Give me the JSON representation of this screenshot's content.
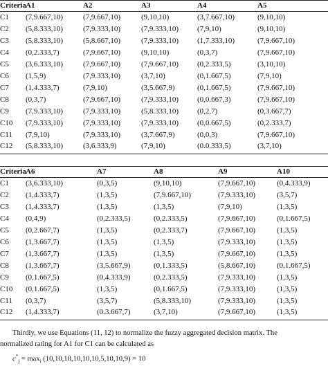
{
  "tables": [
    {
      "header": [
        "Criteria",
        "A1",
        "A2",
        "A3",
        "A4",
        "A5"
      ],
      "rows": [
        [
          "C1",
          "(7,9.667,10)",
          "(7,9.667,10)",
          "(9,10,10)",
          "(3,7.667,10)",
          "(9,10,10)"
        ],
        [
          "C2",
          "(5,8.333,10)",
          "(7,9.333,10)",
          "(7,9.333,10)",
          "(7,9,10)",
          "(9,10,10)"
        ],
        [
          "C3",
          "(5,8.333,10)",
          "(5,8.667,10)",
          "(7,9.333,10)",
          "(1,7.333,10)",
          "(7,9.667,10)"
        ],
        [
          "C4",
          "(0,2.333,7)",
          "(7,9.667,10)",
          "(9,10,10)",
          "(0,3,7)",
          "(7,9.667,10)"
        ],
        [
          "C5",
          "(3,6.333,10)",
          "(7,9.667,10)",
          "(7,9.667,10)",
          "(0,2.333,5)",
          "(3,10,10)"
        ],
        [
          "C6",
          "(1,5,9)",
          "(7,9.333,10)",
          "(3,7,10)",
          "(0,1.667,5)",
          "(7,9,10)"
        ],
        [
          "C7",
          "(1,4.333,7)",
          "(7,9,10)",
          "(3,5.667,9)",
          "(0,1.667,5)",
          "(7,9.667,10)"
        ],
        [
          "C8",
          "(0,3,7)",
          "(7,9.667,10)",
          "(7,9.333,10)",
          "(0,0.667,3)",
          "(7,9.667,10)"
        ],
        [
          "C9",
          "(7,9.333,10)",
          "(7,9.333,10)",
          "(5,8.333,10)",
          "(0,2,7)",
          "(0,3.667,7)"
        ],
        [
          "C10",
          "(7,9.333,10)",
          "(7,9.333,10)",
          "(7,9.333,10)",
          "(0,0.667,5)",
          "(0,2.333,7)"
        ],
        [
          "C11",
          "(7,9,10)",
          "(7,9.333,10)",
          "(3,7.667,9)",
          "(0,0,3)",
          "(7,9.667,10)"
        ],
        [
          "C12",
          "(5,8.333,10)",
          "(3,6.333,9)",
          "(7,9,10)",
          "(0.0.333,5)",
          "(3,7,10)"
        ]
      ]
    },
    {
      "header": [
        "Criteria",
        "A6",
        "A7",
        "A8",
        "A9",
        "A10"
      ],
      "rows": [
        [
          "C1",
          "(3,6.333,10)",
          "(0,3,5)",
          "(9,10,10)",
          "(7,9.667,10)",
          "(0,4.333,9)"
        ],
        [
          "C2",
          "(1,4.333,7)",
          "(1,3,5)",
          "(7,9.667,10)",
          "(7,9.333,10)",
          "(3,5,7)"
        ],
        [
          "C3",
          "(1,4.333,7)",
          "(1,3,5)",
          "(1,3,5)",
          "(7,9,10)",
          "(1,3,5)"
        ],
        [
          "C4",
          "(0,4,9)",
          "(0,2.333,5)",
          "(0,2.333,5)",
          "(7,9.667,10)",
          "(0,1.667,5)"
        ],
        [
          "C5",
          "(0,2.667,7)",
          "(1,3,5)",
          "(0,2.333,7)",
          "(7,9.667,10)",
          "(1,3,5)"
        ],
        [
          "C6",
          "(1,3.667,7)",
          "(1,3,5)",
          "(1,3,5)",
          "(7,9.333,10)",
          "(1,3,5)"
        ],
        [
          "C7",
          "(1,3.667,7)",
          "(1,3,5)",
          "(1,3,5)",
          "(7,9.667,10)",
          "(1,3,5)"
        ],
        [
          "C8",
          "(1,3.667,7)",
          "(3,5.667,9)",
          "(0,1.333,5)",
          "(5,8.667,10)",
          "(0,1.667,5)"
        ],
        [
          "C9",
          "(0,1.667,5)",
          "(0,4.333,9)",
          "(0,2.333,5)",
          "(7,9.333,10)",
          "(1,3,5)"
        ],
        [
          "C10",
          "(0,1.667,5)",
          "(1,3,5)",
          "(0,1.667,5)",
          "(7,9.333,10)",
          "(1,3,5)"
        ],
        [
          "C11",
          "(0,3,7)",
          "(3,5,7)",
          "(5,8.333,10)",
          "(7,9.333,10)",
          "(1,3,5)"
        ],
        [
          "C12",
          "(1,4.333,7)",
          "(0.3.667,7)",
          "(3,7,10)",
          "(7,9.667,10)",
          "(1,3,5)"
        ]
      ]
    }
  ],
  "paragraph": {
    "line1": "Thirdly, we use Equations (11, 12) to normalize the fuzzy aggregated decision matrix. The",
    "line2": "normalized rating for A1 for C1 can be calculated as"
  },
  "formula": {
    "symbol": "c",
    "superscript": "*",
    "subscript": "j",
    "operator": "= max",
    "operator_subscript": "i",
    "expression": "(10,10,10,10,10,10,5,10,10,9) = 10"
  }
}
